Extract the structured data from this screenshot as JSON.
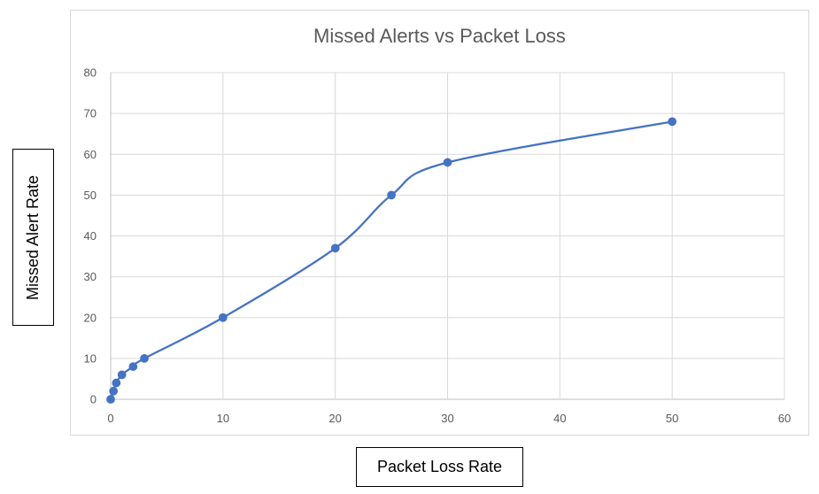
{
  "chart_data": {
    "type": "line",
    "title": "Missed Alerts vs Packet Loss",
    "xlabel": "Packet Loss Rate",
    "ylabel": "Missed Alert Rate",
    "xlim": [
      0,
      60
    ],
    "ylim": [
      0,
      80
    ],
    "xticks": [
      "0",
      "10",
      "20",
      "30",
      "40",
      "50",
      "60"
    ],
    "yticks": [
      "0",
      "10",
      "20",
      "30",
      "40",
      "50",
      "60",
      "70",
      "80"
    ],
    "grid": true,
    "legend": "none",
    "smooth": true,
    "series": [
      {
        "color": "#4472c4",
        "x": [
          0,
          0.25,
          0.5,
          1,
          2,
          3,
          10,
          20,
          25,
          30,
          50
        ],
        "y": [
          0,
          2,
          4,
          6,
          8,
          10,
          20,
          37,
          50,
          58,
          68
        ]
      }
    ]
  }
}
